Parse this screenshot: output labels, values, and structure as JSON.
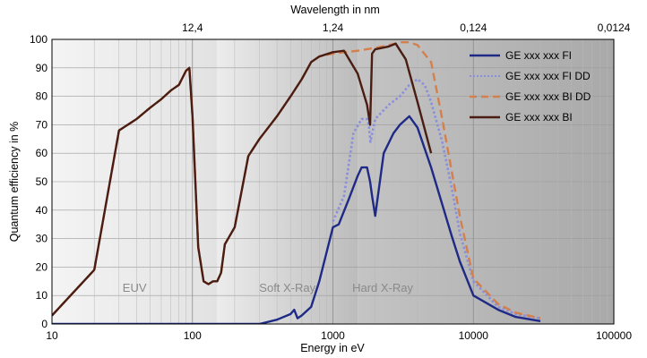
{
  "chart_data": {
    "type": "line",
    "title": "",
    "xlabel": "Energy in eV",
    "ylabel": "Quantum efficiency in %",
    "x2label": "Wavelength in nm",
    "x_scale": "log",
    "xlim": [
      10,
      100000
    ],
    "ylim": [
      0,
      100
    ],
    "x_ticks": [
      {
        "value": 10,
        "label": "10"
      },
      {
        "value": 100,
        "label": "100"
      },
      {
        "value": 1000,
        "label": "1000"
      },
      {
        "value": 10000,
        "label": "10000"
      },
      {
        "value": 100000,
        "label": "100000"
      }
    ],
    "x2_ticks": [
      {
        "value": 100,
        "label": "12,4"
      },
      {
        "value": 1000,
        "label": "1,24"
      },
      {
        "value": 10000,
        "label": "0,124"
      },
      {
        "value": 100000,
        "label": "0,0124"
      }
    ],
    "y_ticks": [
      0,
      10,
      20,
      30,
      40,
      50,
      60,
      70,
      80,
      90,
      100
    ],
    "grid": true,
    "legend_position": "top-right",
    "regions": [
      {
        "label": "EUV",
        "from": 10,
        "to": 150
      },
      {
        "label": "Soft X-Ray",
        "from": 150,
        "to": 1500
      },
      {
        "label": "Hard X-Ray",
        "from": 1500,
        "to": 100000
      }
    ],
    "series": [
      {
        "name": "GE xxx xxx FI",
        "color": "#1f2a87",
        "dash": "solid",
        "x": [
          10,
          100,
          300,
          400,
          500,
          530,
          560,
          600,
          700,
          800,
          900,
          1000,
          1100,
          1300,
          1500,
          1600,
          1750,
          1840,
          1900,
          2000,
          2300,
          2700,
          3000,
          3500,
          4000,
          5000,
          6000,
          7000,
          8000,
          10000,
          15000,
          20000,
          30000
        ],
        "y": [
          0,
          0,
          0,
          1.5,
          3.5,
          5,
          2,
          3,
          6,
          15,
          25,
          34,
          35,
          44,
          52,
          55,
          55,
          50,
          45,
          38,
          60,
          67,
          70,
          73,
          69,
          55,
          42,
          31,
          22,
          10,
          5,
          2.5,
          1
        ]
      },
      {
        "name": "GE xxx xxx FI DD",
        "color": "#8a8fdc",
        "dash": "dotted",
        "x": [
          1000,
          1200,
          1400,
          1600,
          1750,
          1800,
          1850,
          2000,
          2500,
          3000,
          3500,
          4000,
          4500,
          5000,
          6000,
          7000,
          8000,
          10000,
          15000,
          20000,
          30000
        ],
        "y": [
          36,
          45,
          67,
          72,
          72,
          70,
          64,
          72,
          77,
          80,
          84,
          86,
          84,
          78,
          64,
          48,
          32,
          15,
          6,
          3.5,
          2
        ]
      },
      {
        "name": "GE xxx xxx BI DD",
        "color": "#d4804e",
        "dash": "dashed",
        "x": [
          10,
          20,
          30,
          40,
          50,
          60,
          70,
          80,
          90,
          95,
          100,
          110,
          120,
          130,
          140,
          150,
          160,
          170,
          200,
          250,
          300,
          400,
          500,
          600,
          700,
          800,
          1000,
          1500,
          2000,
          2500,
          3000,
          3500,
          4000,
          5000,
          6000,
          8000,
          10000,
          15000,
          20000,
          30000
        ],
        "y": [
          3,
          19,
          68,
          72,
          76,
          79,
          82,
          84,
          89,
          90,
          73,
          27,
          15,
          14,
          15,
          15,
          18,
          28,
          34,
          59,
          65,
          73,
          80,
          86,
          92,
          94,
          95,
          96,
          97,
          98,
          99,
          99,
          98,
          92,
          72,
          38,
          16,
          7,
          4,
          2
        ]
      },
      {
        "name": "GE xxx xxx BI",
        "color": "#4a1c12",
        "dash": "solid",
        "x": [
          10,
          20,
          30,
          40,
          50,
          60,
          70,
          80,
          90,
          95,
          100,
          110,
          120,
          130,
          140,
          150,
          160,
          170,
          200,
          250,
          300,
          400,
          500,
          600,
          700,
          800,
          1000,
          1200,
          1500,
          1750,
          1840,
          1900,
          2000,
          2500,
          2800,
          3300,
          4000,
          5000
        ],
        "y": [
          3,
          19,
          68,
          72,
          76,
          79,
          82,
          84,
          89,
          90,
          73,
          27,
          15,
          14,
          15,
          15,
          18,
          28,
          34,
          59,
          65,
          73,
          80,
          86,
          92,
          94,
          95.5,
          96,
          88,
          77,
          70,
          95,
          96.5,
          97.5,
          98.5,
          93,
          78,
          60
        ]
      }
    ]
  }
}
